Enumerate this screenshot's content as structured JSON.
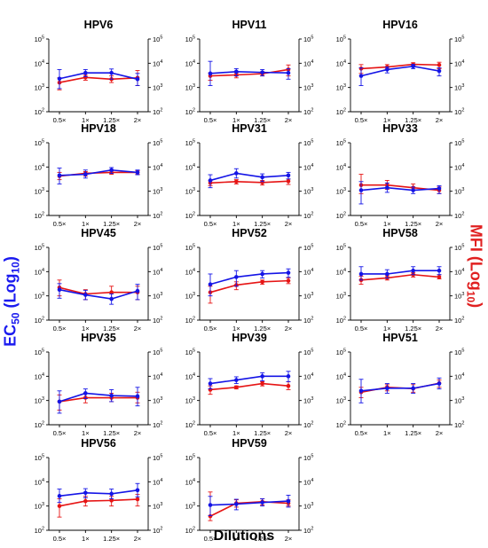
{
  "figure": {
    "x_axis_label": "Dilutions",
    "left_axis_label_main": "EC",
    "left_axis_label_sub": "50",
    "left_axis_label_tail": " (Log",
    "left_axis_label_sub2": "10",
    "left_axis_label_end": ")",
    "right_axis_label_main": "MFI (Log",
    "right_axis_label_sub": "10",
    "right_axis_label_end": ")"
  },
  "colors": {
    "ec50": "#1414e6",
    "mfi": "#e61414"
  },
  "chart_data": [
    {
      "type": "line",
      "title": "HPV6",
      "categories": [
        "0.5×",
        "1×",
        "1.25×",
        "2×"
      ],
      "yscale": "log",
      "ylim": [
        100,
        100000
      ],
      "yticks": [
        "10^2",
        "10^3",
        "10^4",
        "10^5"
      ],
      "series": [
        {
          "values": [
            2300,
            4000,
            4000,
            2200
          ],
          "err_low": [
            900,
            2800,
            2200,
            1200
          ],
          "err_high": [
            5500,
            5500,
            5800,
            3800
          ]
        },
        {
          "values": [
            1600,
            2600,
            2200,
            2500
          ],
          "err_low": [
            800,
            2000,
            1600,
            1200
          ],
          "err_high": [
            2500,
            3200,
            3000,
            5000
          ]
        }
      ]
    },
    {
      "type": "line",
      "title": "HPV11",
      "categories": [
        "0.5×",
        "1×",
        "1.25×",
        "2×"
      ],
      "yscale": "log",
      "ylim": [
        100,
        100000
      ],
      "yticks": [
        "10^2",
        "10^3",
        "10^4",
        "10^5"
      ],
      "series": [
        {
          "values": [
            3800,
            4500,
            4200,
            4000
          ],
          "err_low": [
            1200,
            3000,
            3000,
            2200
          ],
          "err_high": [
            12000,
            6000,
            5500,
            6000
          ]
        },
        {
          "values": [
            3000,
            3300,
            3700,
            5500
          ],
          "err_low": [
            2000,
            2500,
            3000,
            3000
          ],
          "err_high": [
            4000,
            4000,
            4500,
            8500
          ]
        }
      ]
    },
    {
      "type": "line",
      "title": "HPV16",
      "categories": [
        "0.5×",
        "1×",
        "1.25×",
        "2×"
      ],
      "yscale": "log",
      "ylim": [
        100,
        100000
      ],
      "yticks": [
        "10^2",
        "10^3",
        "10^4",
        "10^5"
      ],
      "series": [
        {
          "values": [
            3000,
            5500,
            7500,
            4800
          ],
          "err_low": [
            1200,
            4000,
            6000,
            3000
          ],
          "err_high": [
            6500,
            7000,
            9000,
            6500
          ]
        },
        {
          "values": [
            6000,
            7000,
            9000,
            8500
          ],
          "err_low": [
            3800,
            5800,
            8000,
            6000
          ],
          "err_high": [
            8800,
            8800,
            10500,
            11000
          ]
        }
      ]
    },
    {
      "type": "line",
      "title": "HPV18",
      "categories": [
        "0.5×",
        "1×",
        "1.25×",
        "2×"
      ],
      "yscale": "log",
      "ylim": [
        100,
        100000
      ],
      "yticks": [
        "10^2",
        "10^3",
        "10^4",
        "10^5"
      ],
      "series": [
        {
          "values": [
            4500,
            5000,
            7500,
            6000
          ],
          "err_low": [
            2000,
            3500,
            5500,
            4800
          ],
          "err_high": [
            9000,
            7500,
            9500,
            7500
          ]
        },
        {
          "values": [
            4200,
            5500,
            6000,
            6000
          ],
          "err_low": [
            3000,
            4200,
            5000,
            5000
          ],
          "err_high": [
            6000,
            6500,
            7000,
            7000
          ]
        }
      ]
    },
    {
      "type": "line",
      "title": "HPV31",
      "categories": [
        "0.5×",
        "1×",
        "1.25×",
        "2×"
      ],
      "yscale": "log",
      "ylim": [
        100,
        100000
      ],
      "yticks": [
        "10^2",
        "10^3",
        "10^4",
        "10^5"
      ],
      "series": [
        {
          "values": [
            2800,
            5500,
            3800,
            4500
          ],
          "err_low": [
            1400,
            3500,
            2500,
            3200
          ],
          "err_high": [
            4800,
            8500,
            5200,
            6000
          ]
        },
        {
          "values": [
            2200,
            2500,
            2300,
            2600
          ],
          "err_low": [
            1700,
            2000,
            1800,
            1900
          ],
          "err_high": [
            2700,
            3000,
            2800,
            3200
          ]
        }
      ]
    },
    {
      "type": "line",
      "title": "HPV33",
      "categories": [
        "0.5×",
        "1×",
        "1.25×",
        "2×"
      ],
      "yscale": "log",
      "ylim": [
        100,
        100000
      ],
      "yticks": [
        "10^2",
        "10^3",
        "10^4",
        "10^5"
      ],
      "series": [
        {
          "values": [
            1100,
            1400,
            1100,
            1300
          ],
          "err_low": [
            300,
            900,
            800,
            800
          ],
          "err_high": [
            2500,
            2200,
            1500,
            1700
          ]
        },
        {
          "values": [
            1800,
            1800,
            1400,
            1100
          ],
          "err_low": [
            800,
            1200,
            1100,
            800
          ],
          "err_high": [
            5000,
            2800,
            2000,
            1500
          ]
        }
      ]
    },
    {
      "type": "line",
      "title": "HPV45",
      "categories": [
        "0.5×",
        "1×",
        "1.25×",
        "2×"
      ],
      "yscale": "log",
      "ylim": [
        100,
        100000
      ],
      "yticks": [
        "10^2",
        "10^3",
        "10^4",
        "10^5"
      ],
      "series": [
        {
          "values": [
            1800,
            1100,
            750,
            1600
          ],
          "err_low": [
            800,
            700,
            450,
            700
          ],
          "err_high": [
            3200,
            1700,
            1200,
            3000
          ]
        },
        {
          "values": [
            2200,
            1200,
            1400,
            1400
          ],
          "err_low": [
            1000,
            700,
            800,
            700
          ],
          "err_high": [
            4500,
            1800,
            2500,
            2500
          ]
        }
      ]
    },
    {
      "type": "line",
      "title": "HPV52",
      "categories": [
        "0.5×",
        "1×",
        "1.25×",
        "2×"
      ],
      "yscale": "log",
      "ylim": [
        100,
        100000
      ],
      "yticks": [
        "10^2",
        "10^3",
        "10^4",
        "10^5"
      ],
      "series": [
        {
          "values": [
            3000,
            6000,
            8000,
            9000
          ],
          "err_low": [
            1000,
            2500,
            5500,
            5800
          ],
          "err_high": [
            8000,
            11000,
            11000,
            13000
          ]
        },
        {
          "values": [
            1400,
            2800,
            3800,
            4200
          ],
          "err_low": [
            500,
            1800,
            3000,
            3200
          ],
          "err_high": [
            2500,
            3800,
            4500,
            5500
          ]
        }
      ]
    },
    {
      "type": "line",
      "title": "HPV58",
      "categories": [
        "0.5×",
        "1×",
        "1.25×",
        "2×"
      ],
      "yscale": "log",
      "ylim": [
        100,
        100000
      ],
      "yticks": [
        "10^2",
        "10^3",
        "10^4",
        "10^5"
      ],
      "series": [
        {
          "values": [
            8000,
            8000,
            11000,
            11000
          ],
          "err_low": [
            4500,
            5500,
            7500,
            7500
          ],
          "err_high": [
            16000,
            12000,
            16000,
            16000
          ]
        },
        {
          "values": [
            4500,
            5500,
            7500,
            6000
          ],
          "err_low": [
            3000,
            4500,
            6000,
            5000
          ],
          "err_high": [
            6500,
            6800,
            9000,
            7500
          ]
        }
      ]
    },
    {
      "type": "line",
      "title": "HPV35",
      "categories": [
        "0.5×",
        "1×",
        "1.25×",
        "2×"
      ],
      "yscale": "log",
      "ylim": [
        100,
        100000
      ],
      "yticks": [
        "10^2",
        "10^3",
        "10^4",
        "10^5"
      ],
      "series": [
        {
          "values": [
            900,
            2000,
            1600,
            1500
          ],
          "err_low": [
            300,
            1200,
            900,
            600
          ],
          "err_high": [
            2500,
            3000,
            2800,
            3500
          ]
        },
        {
          "values": [
            900,
            1300,
            1300,
            1300
          ],
          "err_low": [
            400,
            800,
            900,
            800
          ],
          "err_high": [
            1700,
            2000,
            2000,
            2200
          ]
        }
      ]
    },
    {
      "type": "line",
      "title": "HPV39",
      "categories": [
        "0.5×",
        "1×",
        "1.25×",
        "2×"
      ],
      "yscale": "log",
      "ylim": [
        100,
        100000
      ],
      "yticks": [
        "10^2",
        "10^3",
        "10^4",
        "10^5"
      ],
      "series": [
        {
          "values": [
            5000,
            7000,
            10000,
            10000
          ],
          "err_low": [
            3000,
            5000,
            6500,
            6000
          ],
          "err_high": [
            8000,
            9500,
            14000,
            16000
          ]
        },
        {
          "values": [
            2800,
            3500,
            5000,
            4000
          ],
          "err_low": [
            1800,
            3000,
            4000,
            2800
          ],
          "err_high": [
            4000,
            4000,
            6000,
            6000
          ]
        }
      ]
    },
    {
      "type": "line",
      "title": "HPV51",
      "categories": [
        "0.5×",
        "1×",
        "1.25×",
        "2×"
      ],
      "yscale": "log",
      "ylim": [
        100,
        100000
      ],
      "yticks": [
        "10^2",
        "10^3",
        "10^4",
        "10^5"
      ],
      "series": [
        {
          "values": [
            2500,
            3200,
            3200,
            5000
          ],
          "err_low": [
            800,
            2000,
            2000,
            3000
          ],
          "err_high": [
            7500,
            5000,
            5000,
            8500
          ]
        },
        {
          "values": [
            2200,
            3500,
            3100,
            5200
          ],
          "err_low": [
            1300,
            2500,
            2200,
            3500
          ],
          "err_high": [
            3500,
            4500,
            4500,
            7000
          ]
        }
      ]
    },
    {
      "type": "line",
      "title": "HPV56",
      "categories": [
        "0.5×",
        "1×",
        "1.25×",
        "2×"
      ],
      "yscale": "log",
      "ylim": [
        100,
        100000
      ],
      "yticks": [
        "10^2",
        "10^3",
        "10^4",
        "10^5"
      ],
      "series": [
        {
          "values": [
            2600,
            3500,
            3200,
            4500
          ],
          "err_low": [
            1400,
            2200,
            2000,
            2400
          ],
          "err_high": [
            5000,
            5200,
            5000,
            8500
          ]
        },
        {
          "values": [
            1000,
            1600,
            1700,
            1900
          ],
          "err_low": [
            350,
            1000,
            1000,
            1000
          ],
          "err_high": [
            2000,
            2500,
            2500,
            3000
          ]
        }
      ]
    },
    {
      "type": "line",
      "title": "HPV59",
      "categories": [
        "0.5×",
        "1×",
        "1.25×",
        "2×"
      ],
      "yscale": "log",
      "ylim": [
        100,
        100000
      ],
      "yticks": [
        "10^2",
        "10^3",
        "10^4",
        "10^5"
      ],
      "series": [
        {
          "values": [
            1100,
            1200,
            1400,
            1600
          ],
          "err_low": [
            400,
            700,
            1000,
            900
          ],
          "err_high": [
            2500,
            1900,
            2000,
            2800
          ]
        },
        {
          "values": [
            380,
            1300,
            1500,
            1300
          ],
          "err_low": [
            250,
            900,
            1100,
            1000
          ],
          "err_high": [
            3800,
            1800,
            2000,
            1800
          ]
        }
      ]
    }
  ]
}
